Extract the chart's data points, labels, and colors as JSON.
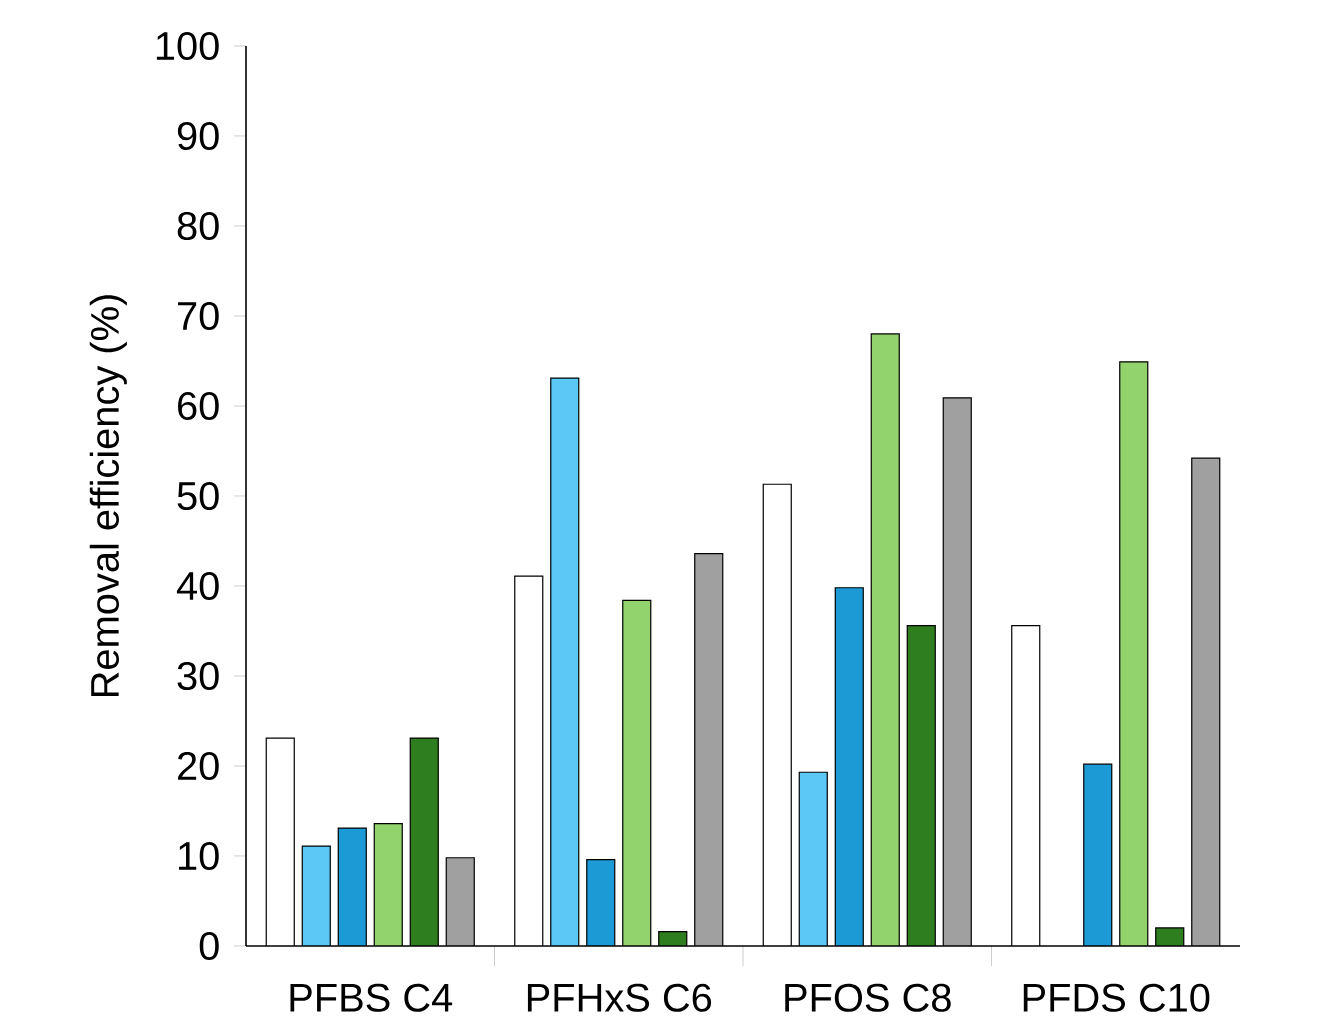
{
  "chart_data": {
    "type": "bar",
    "ylabel": "Removal efficiency (%)",
    "categories": [
      "PFBS C4",
      "PFHxS C6",
      "PFOS C8",
      "PFDS C10"
    ],
    "series": [
      {
        "color": "#ffffff",
        "values": [
          23.1,
          41.1,
          51.3,
          35.6
        ]
      },
      {
        "color": "#5bc8f5",
        "values": [
          11.1,
          63.1,
          19.3,
          null
        ]
      },
      {
        "color": "#1c9ad6",
        "values": [
          13.1,
          9.6,
          39.8,
          20.2
        ]
      },
      {
        "color": "#92d36e",
        "values": [
          13.6,
          38.4,
          68.0,
          64.9
        ]
      },
      {
        "color": "#2e7d1f",
        "values": [
          23.1,
          1.6,
          35.6,
          2.0
        ]
      },
      {
        "color": "#a0a0a0",
        "values": [
          9.8,
          43.6,
          60.9,
          54.2
        ]
      }
    ],
    "ylim": [
      0,
      100
    ],
    "yticks": [
      0,
      10,
      20,
      30,
      40,
      50,
      60,
      70,
      80,
      90,
      100
    ],
    "grid": false
  }
}
